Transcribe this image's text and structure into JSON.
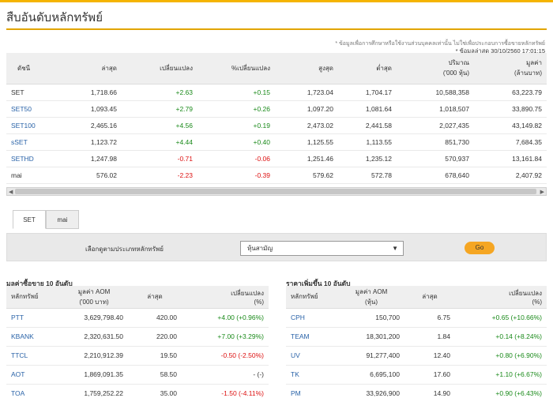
{
  "page": {
    "title": "สืบอันดับหลักทรัพย์",
    "disclaimer": "* ข้อมูลเพื่อการศึกษาหรือใช้งานส่วนบุคคลเท่านั้น ไม่ใช่เพื่อประกอบการซื้อขายหลักทรัพย์",
    "updated": "* ข้อมูลล่าสุด 30/10/2560 17:01:15"
  },
  "index_table": {
    "headers": [
      "ดัชนี",
      "ล่าสุด",
      "เปลี่ยนแปลง",
      "%เปลี่ยนแปลง",
      "สูงสุด",
      "ต่ำสุด",
      "ปริมาณ\n('000 หุ้น)",
      "มูลค่า\n(ล้านบาท)"
    ],
    "rows": [
      {
        "name": "SET",
        "last": "1,718.66",
        "change": "+2.63",
        "pct": "+0.15",
        "high": "1,723.04",
        "low": "1,704.17",
        "volume": "10,588,358",
        "value": "63,223.79",
        "dir": "up",
        "style": "plain"
      },
      {
        "name": "SET50",
        "last": "1,093.45",
        "change": "+2.79",
        "pct": "+0.26",
        "high": "1,097.20",
        "low": "1,081.64",
        "volume": "1,018,507",
        "value": "33,890.75",
        "dir": "up",
        "style": "link"
      },
      {
        "name": "SET100",
        "last": "2,465.16",
        "change": "+4.56",
        "pct": "+0.19",
        "high": "2,473.02",
        "low": "2,441.58",
        "volume": "2,027,435",
        "value": "43,149.82",
        "dir": "up",
        "style": "link"
      },
      {
        "name": "sSET",
        "last": "1,123.72",
        "change": "+4.44",
        "pct": "+0.40",
        "high": "1,125.55",
        "low": "1,113.55",
        "volume": "851,730",
        "value": "7,684.35",
        "dir": "up",
        "style": "link"
      },
      {
        "name": "SETHD",
        "last": "1,247.98",
        "change": "-0.71",
        "pct": "-0.06",
        "high": "1,251.46",
        "low": "1,235.12",
        "volume": "570,937",
        "value": "13,161.84",
        "dir": "down",
        "style": "link"
      },
      {
        "name": "mai",
        "last": "576.02",
        "change": "-2.23",
        "pct": "-0.39",
        "high": "579.62",
        "low": "572.78",
        "volume": "678,640",
        "value": "2,407.92",
        "dir": "down",
        "style": "plain"
      }
    ]
  },
  "tabs": [
    "SET",
    "mai"
  ],
  "filter": {
    "label": "เลือกดูตามประเภทหลักทรัพย์",
    "selected": "หุ้นสามัญ",
    "button": "Go"
  },
  "top_value": {
    "title": "มูลค่าซื้อขาย 10 อันดับ",
    "headers": [
      "หลักทรัพย์",
      "มูลค่า AOM\n('000 บาท)",
      "ล่าสุด",
      "เปลี่ยนแปลง\n(%)"
    ],
    "rows": [
      {
        "symbol": "PTT",
        "amount": "3,629,798.40",
        "last": "420.00",
        "change": "+4.00 (+0.96%)",
        "dir": "up"
      },
      {
        "symbol": "KBANK",
        "amount": "2,320,631.50",
        "last": "220.00",
        "change": "+7.00 (+3.29%)",
        "dir": "up"
      },
      {
        "symbol": "TTCL",
        "amount": "2,210,912.39",
        "last": "19.50",
        "change": "-0.50 (-2.50%)",
        "dir": "down"
      },
      {
        "symbol": "AOT",
        "amount": "1,869,091.35",
        "last": "58.50",
        "change": "- (-)",
        "dir": "flat"
      },
      {
        "symbol": "TOA",
        "amount": "1,759,252.22",
        "last": "35.00",
        "change": "-1.50 (-4.11%)",
        "dir": "down"
      }
    ]
  },
  "top_gainers": {
    "title": "ราคาเพิ่มขึ้น 10 อันดับ",
    "headers": [
      "หลักทรัพย์",
      "มูลค่า AOM\n(หุ้น)",
      "ล่าสุด",
      "เปลี่ยนแปลง\n(%)"
    ],
    "rows": [
      {
        "symbol": "CPH",
        "amount": "150,700",
        "last": "6.75",
        "change": "+0.65 (+10.66%)",
        "dir": "up"
      },
      {
        "symbol": "TEAM",
        "amount": "18,301,200",
        "last": "1.84",
        "change": "+0.14 (+8.24%)",
        "dir": "up"
      },
      {
        "symbol": "UV",
        "amount": "91,277,400",
        "last": "12.40",
        "change": "+0.80 (+6.90%)",
        "dir": "up"
      },
      {
        "symbol": "TK",
        "amount": "6,695,100",
        "last": "17.60",
        "change": "+1.10 (+6.67%)",
        "dir": "up"
      },
      {
        "symbol": "PM",
        "amount": "33,926,900",
        "last": "14.90",
        "change": "+0.90 (+6.43%)",
        "dir": "up"
      }
    ]
  },
  "colors": {
    "accent": "#f5b400",
    "up": "#1a8a1a",
    "down": "#dd1111",
    "link": "#2a63a8"
  }
}
